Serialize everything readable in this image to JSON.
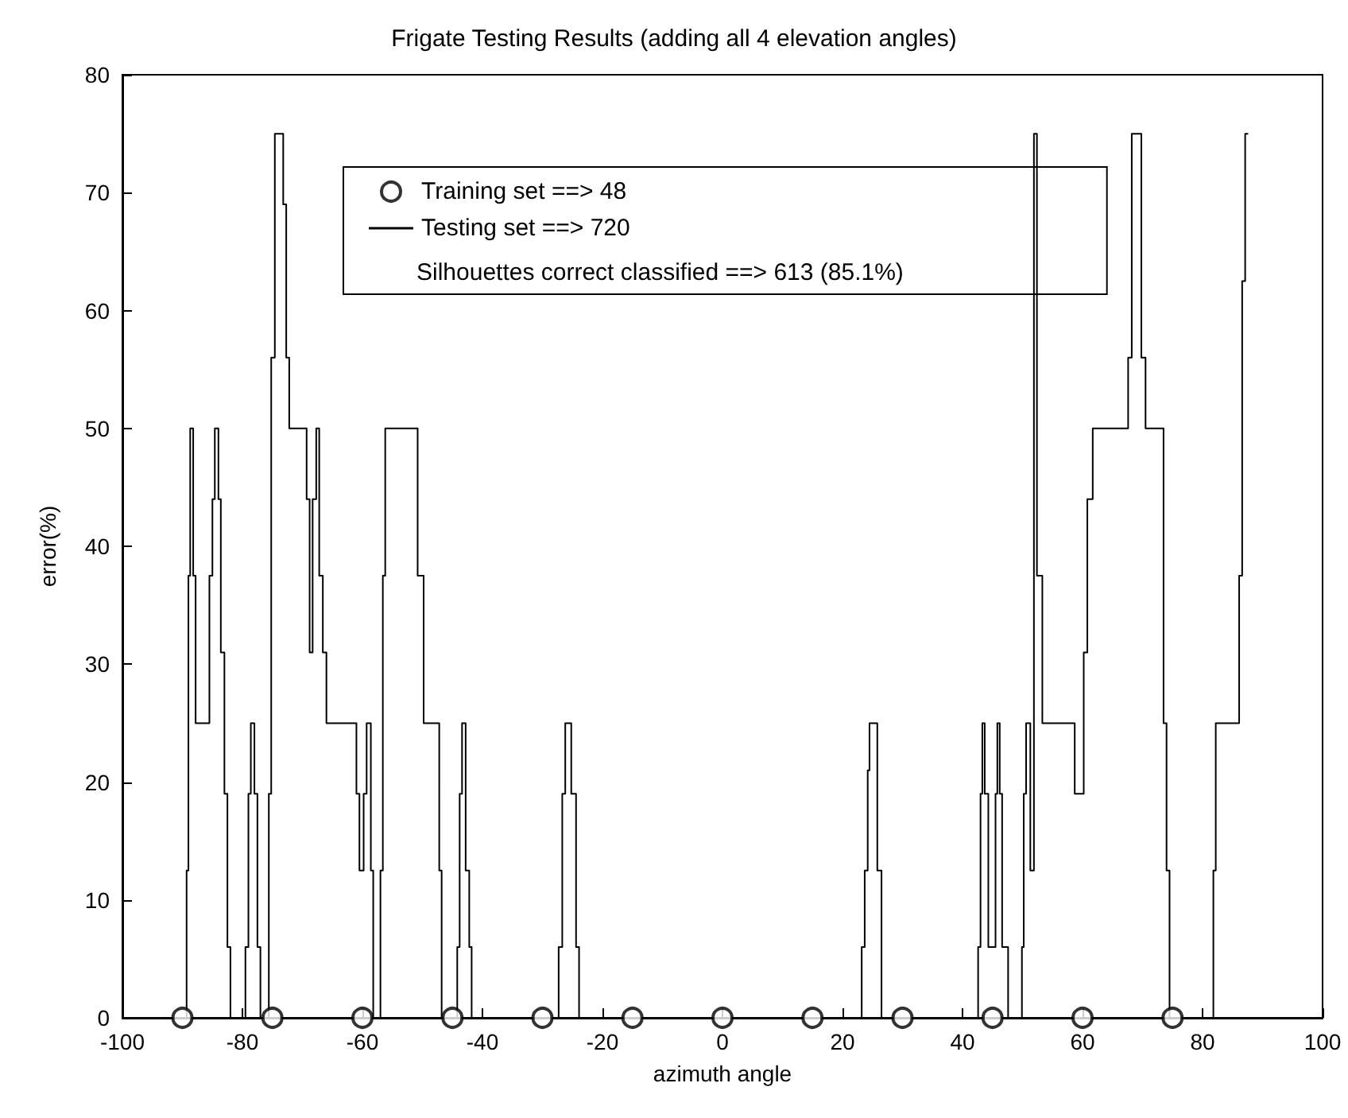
{
  "chart_data": {
    "type": "step",
    "title": "Frigate Testing Results (adding all 4 elevation angles)",
    "xlabel": "azimuth angle",
    "ylabel": "error(%)",
    "xlim": [
      -100,
      100
    ],
    "xticks": [
      -100,
      -80,
      -60,
      -40,
      -20,
      0,
      20,
      40,
      60,
      80,
      100
    ],
    "ylim": [
      0,
      80
    ],
    "yticks": [
      0,
      10,
      20,
      30,
      40,
      50,
      60,
      70,
      80
    ],
    "grid": false,
    "legend": "top",
    "annotations": [
      "Silhouettes correct classified ==> 613 (85.1%)"
    ],
    "series": [
      {
        "name": "Training set ==> 48",
        "type": "scatter",
        "marker": "circle",
        "color": "#000000",
        "x": [
          -90,
          -75,
          -60,
          -45,
          -30,
          -15,
          0,
          15,
          30,
          45,
          60,
          75
        ],
        "values": [
          0,
          0,
          0,
          0,
          0,
          0,
          0,
          0,
          0,
          0,
          0,
          0
        ]
      },
      {
        "name": "Testing set ==> 720",
        "marker": "none",
        "color": "#000000",
        "x": [
          -100,
          -89.3,
          -89,
          -88.7,
          -88.2,
          -87.8,
          -85.5,
          -85,
          -84.6,
          -84,
          -83.6,
          -83,
          -82.5,
          -82,
          -79.5,
          -79,
          -78.6,
          -78,
          -77.5,
          -77,
          -75.6,
          -75.2,
          -74.6,
          -73.2,
          -72.7,
          -72.2,
          -69.3,
          -68.8,
          -68.3,
          -67.7,
          -67.2,
          -66.6,
          -66,
          -61,
          -60.5,
          -59.8,
          -59.3,
          -58.6,
          -58.2,
          -57,
          -56.6,
          -56.2,
          -50.8,
          -49.8,
          -47.2,
          -46.8,
          -44.2,
          -43.8,
          -43.4,
          -42.8,
          -42.2,
          -41.8,
          -27.3,
          -26.7,
          -26.2,
          -25.2,
          -24.4,
          -23.9,
          23.2,
          23.7,
          24.2,
          24.5,
          25.8,
          26.5,
          42.6,
          43,
          43.3,
          43.7,
          44.3,
          45.5,
          45.8,
          46.2,
          46.6,
          47.6,
          49.9,
          50.2,
          50.6,
          51.3,
          51.9,
          52.4,
          53.3,
          58.7,
          60.2,
          60.8,
          61.7,
          67.6,
          68.2,
          69.8,
          70.5,
          73.5,
          74,
          74.5,
          81.8,
          82.2,
          86.1,
          86.6,
          87.1,
          87.6
        ],
        "values": [
          0,
          12.5,
          37.5,
          50,
          37.5,
          25,
          37.5,
          44,
          50,
          44,
          31,
          19,
          6,
          0,
          6,
          19,
          25,
          19,
          6,
          0,
          19,
          56,
          75,
          69,
          56,
          50,
          44,
          31,
          44,
          50,
          37.5,
          31,
          25,
          19,
          12.5,
          19,
          25,
          12.5,
          0,
          12.5,
          37.5,
          50,
          37.5,
          25,
          12.5,
          0,
          6,
          19,
          25,
          12.5,
          6,
          0,
          6,
          19,
          25,
          19,
          6,
          0,
          6,
          12.5,
          21,
          25,
          12.5,
          0,
          6,
          19,
          25,
          19,
          6,
          19,
          25,
          19,
          6,
          0,
          6,
          19,
          25,
          12.5,
          75,
          37.5,
          25,
          19,
          31,
          44,
          50,
          56,
          75,
          56,
          50,
          25,
          12.5,
          0,
          12.5,
          25,
          37.5,
          62.5,
          75,
          75
        ]
      }
    ]
  }
}
